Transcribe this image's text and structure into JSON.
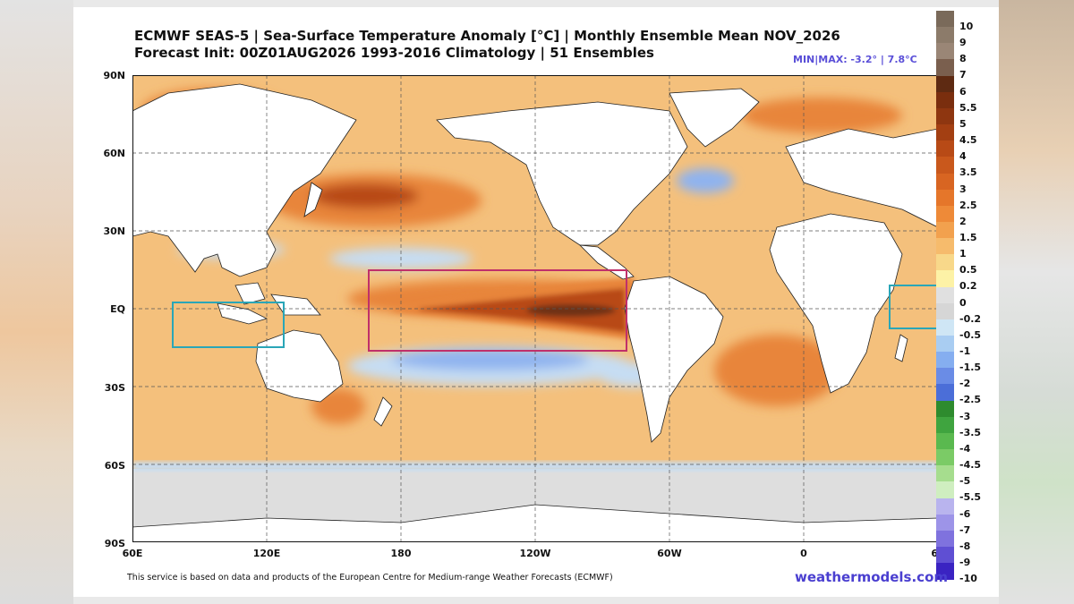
{
  "header": {
    "line1": "ECMWF SEAS-5 | Sea-Surface Temperature Anomaly [°C] | Monthly Ensemble Mean NOV_2026",
    "line2": "Forecast Init: 00Z01AUG2026     1993-2016 Climatology | 51 Ensembles",
    "minmax": "MIN|MAX: -3.2° | 7.8°C"
  },
  "axes": {
    "lat": [
      "90N",
      "60N",
      "30N",
      "EQ",
      "30S",
      "60S",
      "90S"
    ],
    "lon": [
      "60E",
      "120E",
      "180",
      "120W",
      "60W",
      "0",
      "60"
    ]
  },
  "footer": {
    "disclaimer": "This service is based on data and products of the European Centre for Medium-range Weather Forecasts (ECMWF)",
    "brand": "weathermodels.com"
  },
  "colorbar": {
    "levels": [
      {
        "label": "10",
        "color": "#7a6a5a"
      },
      {
        "label": "9",
        "color": "#8c7b6a"
      },
      {
        "label": "8",
        "color": "#9a8676"
      },
      {
        "label": "7",
        "color": "#7a5f4e"
      },
      {
        "label": "6",
        "color": "#5e2a12"
      },
      {
        "label": "5.5",
        "color": "#7a2e0e"
      },
      {
        "label": "5",
        "color": "#8e3610"
      },
      {
        "label": "4.5",
        "color": "#a33f12"
      },
      {
        "label": "4",
        "color": "#b84a16"
      },
      {
        "label": "3.5",
        "color": "#c9581c"
      },
      {
        "label": "3",
        "color": "#d86522"
      },
      {
        "label": "2.5",
        "color": "#e5762a"
      },
      {
        "label": "2",
        "color": "#ee8a38"
      },
      {
        "label": "1.5",
        "color": "#f2a14e"
      },
      {
        "label": "1",
        "color": "#f6bb6c"
      },
      {
        "label": "0.5",
        "color": "#f8d88a"
      },
      {
        "label": "0.2",
        "color": "#fdf2a6"
      },
      {
        "label": "0",
        "color": "#e0e0e0"
      },
      {
        "label": "-0.2",
        "color": "#d6d6d6"
      },
      {
        "label": "-0.5",
        "color": "#cfe6f5"
      },
      {
        "label": "-1",
        "color": "#a9cdf2"
      },
      {
        "label": "-1.5",
        "color": "#85aef0"
      },
      {
        "label": "-2",
        "color": "#6a8ce6"
      },
      {
        "label": "-2.5",
        "color": "#4b6ed8"
      },
      {
        "label": "-3",
        "color": "#2e8b2e"
      },
      {
        "label": "-3.5",
        "color": "#3fa43f"
      },
      {
        "label": "-4",
        "color": "#5ab94f"
      },
      {
        "label": "-4.5",
        "color": "#7bcb66"
      },
      {
        "label": "-5",
        "color": "#a6dd8e"
      },
      {
        "label": "-5.5",
        "color": "#cfeec0"
      },
      {
        "label": "-6",
        "color": "#b9b4ee"
      },
      {
        "label": "-7",
        "color": "#9d94e8"
      },
      {
        "label": "-8",
        "color": "#7f72de"
      },
      {
        "label": "-9",
        "color": "#5f4fd3"
      },
      {
        "label": "-10",
        "color": "#3a23c2"
      }
    ]
  },
  "map_colors": {
    "land": "#ffffff",
    "ice": "#dedede",
    "base": "#f4c07c",
    "warm": "#e8853a",
    "hot": "#b84a16",
    "core": "#6e3219",
    "cool": "#c6ddf3",
    "cold": "#8fb3ef",
    "box_nino": "#c0306a",
    "box_iod": "#2aa6b8"
  }
}
